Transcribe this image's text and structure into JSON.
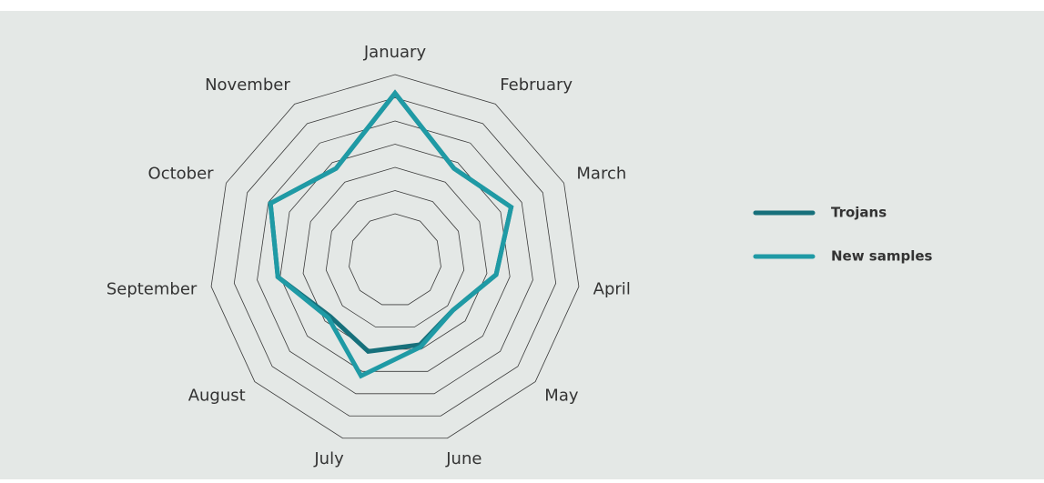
{
  "chart_data": {
    "type": "radar",
    "categories": [
      "January",
      "February",
      "March",
      "April",
      "May",
      "June",
      "July",
      "August",
      "September",
      "October",
      "November"
    ],
    "series": [
      {
        "name": "Trojans",
        "color": "#17707b",
        "values": [
          7.2,
          4.7,
          5.5,
          4.4,
          3.3,
          3.8,
          4.1,
          3.7,
          5.1,
          5.9,
          4.7
        ]
      },
      {
        "name": "New samples",
        "color": "#1f9aa5",
        "values": [
          7.2,
          4.7,
          5.5,
          4.4,
          3.3,
          3.9,
          5.2,
          3.8,
          5.1,
          5.9,
          4.7
        ]
      }
    ],
    "ylim": [
      0,
      8
    ],
    "yticks": [
      2,
      3,
      4,
      5,
      6,
      7,
      8
    ],
    "grid": true,
    "legend": "right"
  }
}
